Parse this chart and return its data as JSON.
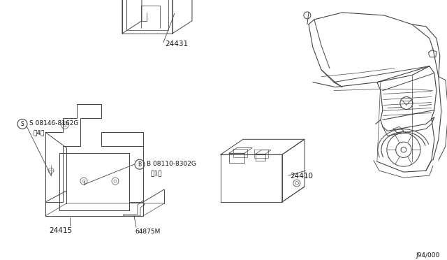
{
  "bg_color": "#ffffff",
  "line_color": "#444444",
  "text_color": "#111111",
  "fig_width": 6.4,
  "fig_height": 3.72,
  "dpi": 100,
  "watermark": "J94∕000",
  "label_24431": "24431",
  "label_24410": "24410",
  "label_24415": "24415",
  "label_64875M": "64875M",
  "label_s": "S 08146-8162G",
  "label_s2": "（4）",
  "label_b": "B 08110-8302G",
  "label_b2": "（1）"
}
